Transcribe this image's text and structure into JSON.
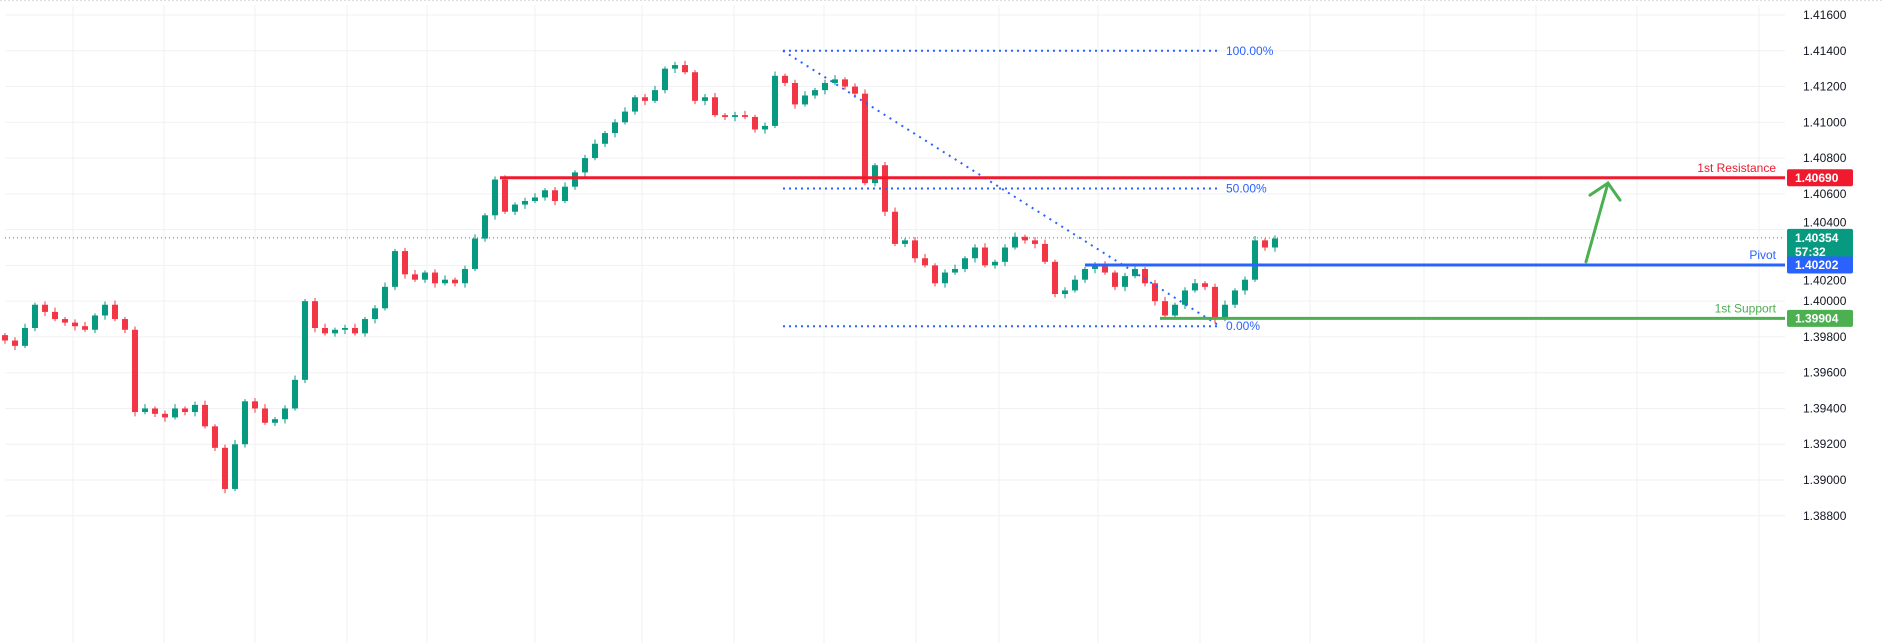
{
  "chart_data": {
    "type": "candlestick",
    "title": "",
    "xlabel": "",
    "ylabel": "",
    "ylim": [
      1.388,
      1.4165
    ],
    "y_ticks": [
      "1.41600",
      "1.41400",
      "1.41200",
      "1.41000",
      "1.40800",
      "1.40600",
      "1.40400",
      "1.40200",
      "1.40000",
      "1.39800",
      "1.39600",
      "1.39400",
      "1.39200",
      "1.39000",
      "1.38800"
    ],
    "grid": true,
    "colors": {
      "up": "#089981",
      "down": "#f23645",
      "resistance": "#f01a2e",
      "pivot": "#2962ff",
      "support": "#4caf50",
      "fib": "#2962ff",
      "arrow": "#4caf50",
      "last_price": "#089981"
    },
    "close": [
      1.3978,
      1.3975,
      1.3985,
      1.3998,
      1.3994,
      1.399,
      1.3988,
      1.3986,
      1.3984,
      1.3992,
      1.3998,
      1.399,
      1.3984,
      1.3938,
      1.394,
      1.3937,
      1.3935,
      1.394,
      1.3938,
      1.3942,
      1.393,
      1.3918,
      1.3895,
      1.392,
      1.3944,
      1.394,
      1.3932,
      1.3934,
      1.394,
      1.3956,
      1.4,
      1.3985,
      1.3982,
      1.3984,
      1.3985,
      1.3982,
      1.399,
      1.3996,
      1.4008,
      1.4028,
      1.4015,
      1.4012,
      1.4016,
      1.401,
      1.4012,
      1.401,
      1.4018,
      1.4035,
      1.4048,
      1.4068,
      1.405,
      1.4054,
      1.4056,
      1.4058,
      1.4062,
      1.4056,
      1.4064,
      1.4072,
      1.408,
      1.4088,
      1.4094,
      1.41,
      1.4106,
      1.4114,
      1.4112,
      1.4118,
      1.413,
      1.4132,
      1.4128,
      1.4112,
      1.4114,
      1.4104,
      1.4103,
      1.4104,
      1.4103,
      1.4096,
      1.4098,
      1.4126,
      1.4122,
      1.411,
      1.4115,
      1.4118,
      1.4122,
      1.4124,
      1.412,
      1.4116,
      1.4066,
      1.4076,
      1.405,
      1.4032,
      1.4034,
      1.4024,
      1.402,
      1.401,
      1.4016,
      1.4018,
      1.4024,
      1.403,
      1.402,
      1.4022,
      1.403,
      1.4036,
      1.4034,
      1.4032,
      1.4022,
      1.4004,
      1.4006,
      1.4012,
      1.4018,
      1.402,
      1.4016,
      1.4008,
      1.4014,
      1.4018,
      1.401,
      1.4,
      1.3992,
      1.3998,
      1.4006,
      1.401,
      1.4008,
      1.399,
      1.3998,
      1.4006,
      1.4012,
      1.4034,
      1.403,
      1.4035
    ],
    "levels": {
      "resistance": {
        "label": "1st Resistance",
        "price": 1.4069,
        "tag": "1.40690"
      },
      "pivot": {
        "label": "Pivot",
        "price": 1.40202,
        "tag": "1.40202"
      },
      "support": {
        "label": "1st Support",
        "price": 1.39904,
        "tag": "1.39904"
      }
    },
    "fibonacci": {
      "high": 1.414,
      "low": 1.3986,
      "levels": [
        {
          "ratio": 1.0,
          "label": "100.00%"
        },
        {
          "ratio": 0.5,
          "label": "50.00%"
        },
        {
          "ratio": 0.0,
          "label": "0.00%"
        }
      ]
    },
    "last_price": {
      "price": 1.40354,
      "tag": "1.40354",
      "countdown": "57:32"
    },
    "projection_arrow": {
      "from_price": 1.4022,
      "to_price": 1.4066
    }
  }
}
